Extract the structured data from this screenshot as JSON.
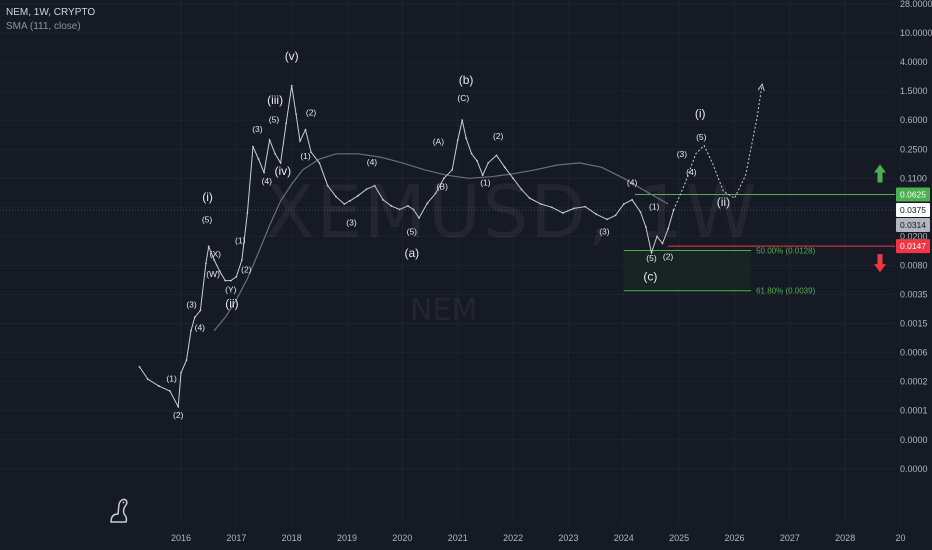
{
  "legend": {
    "title": "NEM, 1W, CRYPTO",
    "indicator": "SMA (111, close)"
  },
  "watermark": {
    "symbol": "XEMUSD, 1W",
    "ticker": "NEM"
  },
  "colors": {
    "background": "#161a25",
    "price_line": "#c9ccd4",
    "sma_line": "#6b6f7a",
    "target_line": "#4caf50",
    "stop_line": "#f23645",
    "fib_line": "#4caf50",
    "fib_fill": "#1a2a23"
  },
  "chart_data": {
    "type": "line",
    "title": "NEM, 1W, CRYPTO",
    "scale": "log",
    "xlabel": "",
    "ylabel": "",
    "x_ticks": [
      "2016",
      "2017",
      "2018",
      "2019",
      "2020",
      "2021",
      "2022",
      "2023",
      "2024",
      "2025",
      "2026",
      "2027",
      "2028",
      "20"
    ],
    "y_ticks": [
      "28.0000",
      "10.0000",
      "4.0000",
      "1.5000",
      "0.6000",
      "0.2500",
      "0.1100",
      "0.0400",
      "0.0200",
      "0.0080",
      "0.0035",
      "0.0015",
      "0.0006",
      "0.0002",
      "0.0001",
      "0.0000",
      "0.0000"
    ],
    "price_tags": [
      {
        "label": "0.0625",
        "value": 0.0625,
        "kind": "target"
      },
      {
        "label": "0.0375",
        "value": 0.0375,
        "kind": "current"
      },
      {
        "label": "0.0314",
        "value": 0.0314,
        "kind": "reference"
      },
      {
        "label": "0.0147",
        "value": 0.0147,
        "kind": "stop"
      }
    ],
    "fib_levels": [
      {
        "label": "50.00% (0.0128)",
        "value": 0.0128
      },
      {
        "label": "61.80% (0.0039)",
        "value": 0.0039
      }
    ],
    "series": [
      {
        "name": "XEMUSD",
        "points": [
          [
            2015.25,
            0.00035
          ],
          [
            2015.4,
            0.00022
          ],
          [
            2015.6,
            0.00018
          ],
          [
            2015.8,
            0.00016
          ],
          [
            2015.95,
            0.00011
          ],
          [
            2016.0,
            0.00028
          ],
          [
            2016.1,
            0.00045
          ],
          [
            2016.18,
            0.0012
          ],
          [
            2016.25,
            0.0018
          ],
          [
            2016.35,
            0.0022
          ],
          [
            2016.45,
            0.0085
          ],
          [
            2016.5,
            0.0145
          ],
          [
            2016.6,
            0.0095
          ],
          [
            2016.7,
            0.0068
          ],
          [
            2016.8,
            0.0052
          ],
          [
            2016.9,
            0.0052
          ],
          [
            2017.0,
            0.0058
          ],
          [
            2017.1,
            0.0095
          ],
          [
            2017.2,
            0.035
          ],
          [
            2017.3,
            0.27
          ],
          [
            2017.4,
            0.19
          ],
          [
            2017.5,
            0.13
          ],
          [
            2017.6,
            0.33
          ],
          [
            2017.7,
            0.22
          ],
          [
            2017.8,
            0.17
          ],
          [
            2017.9,
            0.55
          ],
          [
            2018.0,
            1.8
          ],
          [
            2018.08,
            0.72
          ],
          [
            2018.15,
            0.32
          ],
          [
            2018.25,
            0.45
          ],
          [
            2018.35,
            0.23
          ],
          [
            2018.5,
            0.17
          ],
          [
            2018.65,
            0.085
          ],
          [
            2018.8,
            0.058
          ],
          [
            2018.95,
            0.045
          ],
          [
            2019.05,
            0.05
          ],
          [
            2019.2,
            0.06
          ],
          [
            2019.35,
            0.075
          ],
          [
            2019.5,
            0.085
          ],
          [
            2019.65,
            0.052
          ],
          [
            2019.8,
            0.042
          ],
          [
            2019.95,
            0.038
          ],
          [
            2020.1,
            0.042
          ],
          [
            2020.2,
            0.038
          ],
          [
            2020.3,
            0.031
          ],
          [
            2020.45,
            0.046
          ],
          [
            2020.6,
            0.065
          ],
          [
            2020.75,
            0.11
          ],
          [
            2020.9,
            0.14
          ],
          [
            2021.0,
            0.33
          ],
          [
            2021.08,
            0.6
          ],
          [
            2021.15,
            0.35
          ],
          [
            2021.25,
            0.22
          ],
          [
            2021.35,
            0.18
          ],
          [
            2021.45,
            0.12
          ],
          [
            2021.55,
            0.17
          ],
          [
            2021.7,
            0.21
          ],
          [
            2021.85,
            0.15
          ],
          [
            2022.0,
            0.11
          ],
          [
            2022.15,
            0.075
          ],
          [
            2022.3,
            0.055
          ],
          [
            2022.5,
            0.045
          ],
          [
            2022.7,
            0.04
          ],
          [
            2022.9,
            0.035
          ],
          [
            2023.1,
            0.039
          ],
          [
            2023.3,
            0.041
          ],
          [
            2023.5,
            0.034
          ],
          [
            2023.7,
            0.03
          ],
          [
            2023.85,
            0.033
          ],
          [
            2024.0,
            0.045
          ],
          [
            2024.15,
            0.052
          ],
          [
            2024.3,
            0.036
          ],
          [
            2024.4,
            0.025
          ],
          [
            2024.5,
            0.012
          ],
          [
            2024.6,
            0.02
          ],
          [
            2024.7,
            0.016
          ],
          [
            2024.8,
            0.024
          ],
          [
            2024.9,
            0.0375
          ]
        ]
      },
      {
        "name": "SMA (111, close)",
        "points": [
          [
            2016.6,
            0.0012
          ],
          [
            2016.8,
            0.0018
          ],
          [
            2017.0,
            0.003
          ],
          [
            2017.2,
            0.0055
          ],
          [
            2017.4,
            0.012
          ],
          [
            2017.6,
            0.026
          ],
          [
            2017.8,
            0.05
          ],
          [
            2018.0,
            0.09
          ],
          [
            2018.2,
            0.14
          ],
          [
            2018.5,
            0.19
          ],
          [
            2018.8,
            0.22
          ],
          [
            2019.2,
            0.22
          ],
          [
            2019.6,
            0.2
          ],
          [
            2020.0,
            0.17
          ],
          [
            2020.4,
            0.14
          ],
          [
            2020.8,
            0.12
          ],
          [
            2021.2,
            0.11
          ],
          [
            2021.6,
            0.115
          ],
          [
            2022.0,
            0.125
          ],
          [
            2022.4,
            0.14
          ],
          [
            2022.8,
            0.16
          ],
          [
            2023.2,
            0.17
          ],
          [
            2023.6,
            0.15
          ],
          [
            2024.0,
            0.11
          ],
          [
            2024.4,
            0.07
          ],
          [
            2024.8,
            0.045
          ]
        ]
      },
      {
        "name": "projection",
        "points": [
          [
            2024.9,
            0.0375
          ],
          [
            2025.1,
            0.09
          ],
          [
            2025.3,
            0.22
          ],
          [
            2025.45,
            0.28
          ],
          [
            2025.6,
            0.17
          ],
          [
            2025.8,
            0.07
          ],
          [
            2026.0,
            0.055
          ],
          [
            2026.2,
            0.12
          ],
          [
            2026.4,
            0.6
          ],
          [
            2026.5,
            1.9
          ]
        ]
      }
    ],
    "annotations": [
      {
        "label": "(1)",
        "x": 2015.83,
        "y": 0.0002
      },
      {
        "label": "(2)",
        "x": 2015.95,
        "y": 8e-05
      },
      {
        "label": "(3)",
        "x": 2016.19,
        "y": 0.0024
      },
      {
        "label": "(4)",
        "x": 2016.34,
        "y": 0.0012
      },
      {
        "label": "(5)",
        "x": 2016.47,
        "y": 0.028
      },
      {
        "label": "(i)",
        "x": 2016.48,
        "y": 0.05
      },
      {
        "label": "(X)",
        "x": 2016.62,
        "y": 0.0105
      },
      {
        "label": "(W)",
        "x": 2016.58,
        "y": 0.0058
      },
      {
        "label": "(Y)",
        "x": 2016.9,
        "y": 0.0037
      },
      {
        "label": "(ii)",
        "x": 2016.92,
        "y": 0.0024
      },
      {
        "label": "(2)",
        "x": 2017.18,
        "y": 0.0065
      },
      {
        "label": "(1)",
        "x": 2017.07,
        "y": 0.016
      },
      {
        "label": "(3)",
        "x": 2017.38,
        "y": 0.42
      },
      {
        "label": "(4)",
        "x": 2017.55,
        "y": 0.09
      },
      {
        "label": "(5)",
        "x": 2017.68,
        "y": 0.56
      },
      {
        "label": "(iii)",
        "x": 2017.7,
        "y": 1.0
      },
      {
        "label": "(iv)",
        "x": 2017.84,
        "y": 0.12
      },
      {
        "label": "(1)",
        "x": 2018.25,
        "y": 0.19
      },
      {
        "label": "(2)",
        "x": 2018.35,
        "y": 0.7
      },
      {
        "label": "(v)",
        "x": 2018.0,
        "y": 4.3
      },
      {
        "label": "(3)",
        "x": 2019.08,
        "y": 0.026
      },
      {
        "label": "(4)",
        "x": 2019.45,
        "y": 0.16
      },
      {
        "label": "(5)",
        "x": 2020.17,
        "y": 0.021
      },
      {
        "label": "(a)",
        "x": 2020.17,
        "y": 0.0105
      },
      {
        "label": "(A)",
        "x": 2020.65,
        "y": 0.29
      },
      {
        "label": "(B)",
        "x": 2020.72,
        "y": 0.075
      },
      {
        "label": "(C)",
        "x": 2021.1,
        "y": 1.1
      },
      {
        "label": "(b)",
        "x": 2021.15,
        "y": 1.9
      },
      {
        "label": "(1)",
        "x": 2021.5,
        "y": 0.085
      },
      {
        "label": "(2)",
        "x": 2021.73,
        "y": 0.34
      },
      {
        "label": "(3)",
        "x": 2023.65,
        "y": 0.021
      },
      {
        "label": "(4)",
        "x": 2024.15,
        "y": 0.085
      },
      {
        "label": "(1)",
        "x": 2024.55,
        "y": 0.038
      },
      {
        "label": "(5)",
        "x": 2024.5,
        "y": 0.0092
      },
      {
        "label": "(2)",
        "x": 2024.8,
        "y": 0.0096
      },
      {
        "label": "(c)",
        "x": 2024.48,
        "y": 0.0052
      },
      {
        "label": "(3)",
        "x": 2025.05,
        "y": 0.2
      },
      {
        "label": "(4)",
        "x": 2025.22,
        "y": 0.12
      },
      {
        "label": "(5)",
        "x": 2025.4,
        "y": 0.33
      },
      {
        "label": "(i)",
        "x": 2025.38,
        "y": 0.65
      },
      {
        "label": "(ii)",
        "x": 2025.8,
        "y": 0.042
      }
    ]
  }
}
